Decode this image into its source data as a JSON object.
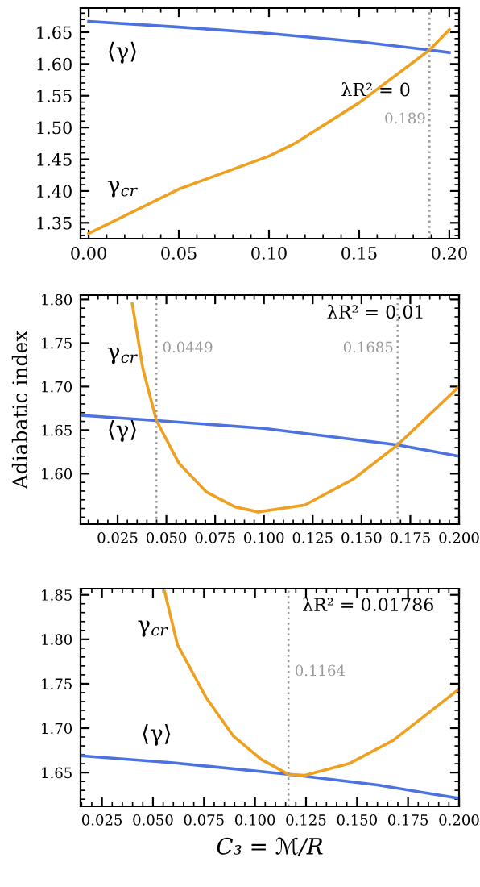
{
  "chart_data": [
    {
      "type": "line",
      "xlim": [
        -0.0045,
        0.2054
      ],
      "ylim": [
        1.325,
        1.688
      ],
      "xticks": [
        {
          "value": 0,
          "label": "0.00"
        },
        {
          "value": 0.05,
          "label": "0.05"
        },
        {
          "value": 0.1,
          "label": "0.10"
        },
        {
          "value": 0.15,
          "label": "0.15"
        },
        {
          "value": 0.2,
          "label": "0.20"
        }
      ],
      "yticks": [
        {
          "value": 1.35,
          "label": "1.35"
        },
        {
          "value": 1.4,
          "label": "1.40"
        },
        {
          "value": 1.45,
          "label": "1.45"
        },
        {
          "value": 1.5,
          "label": "1.50"
        },
        {
          "value": 1.55,
          "label": "1.55"
        },
        {
          "value": 1.6,
          "label": "1.60"
        },
        {
          "value": 1.65,
          "label": "1.65"
        }
      ],
      "series": [
        {
          "name": "⟨γ⟩",
          "color": "#4c72e0",
          "x": [
            0,
            0.05,
            0.1,
            0.15,
            0.189,
            0.2
          ],
          "values": [
            1.667,
            1.658,
            1.648,
            1.635,
            1.622,
            1.618
          ]
        },
        {
          "name": "γ$_{cr}$",
          "color": "#f0a020",
          "x": [
            0,
            0.05,
            0.1,
            0.115,
            0.15,
            0.189,
            0.2
          ],
          "values": [
            1.333,
            1.403,
            1.455,
            1.476,
            1.539,
            1.622,
            1.654
          ]
        }
      ],
      "ref_lines": [
        {
          "axis": "x",
          "value": 0.189,
          "label": "0.189",
          "color": "#999999",
          "line_style": "dotted"
        }
      ],
      "annotations": [
        "λR² = 0"
      ]
    },
    {
      "type": "line",
      "xlim": [
        0.006,
        0.2
      ],
      "ylim": [
        1.542,
        1.805
      ],
      "ylabel": "Adiabatic index",
      "xticks": [
        {
          "value": 0.025,
          "label": "0.025"
        },
        {
          "value": 0.05,
          "label": "0.050"
        },
        {
          "value": 0.075,
          "label": "0.075"
        },
        {
          "value": 0.1,
          "label": "0.100"
        },
        {
          "value": 0.125,
          "label": "0.125"
        },
        {
          "value": 0.15,
          "label": "0.150"
        },
        {
          "value": 0.175,
          "label": "0.175"
        },
        {
          "value": 0.2,
          "label": "0.200"
        }
      ],
      "yticks": [
        {
          "value": 1.6,
          "label": "1.60"
        },
        {
          "value": 1.65,
          "label": "1.65"
        },
        {
          "value": 1.7,
          "label": "1.70"
        },
        {
          "value": 1.75,
          "label": "1.75"
        },
        {
          "value": 1.8,
          "label": "1.80"
        }
      ],
      "series": [
        {
          "name": "⟨γ⟩",
          "color": "#4c72e0",
          "x": [
            0.006,
            0.0449,
            0.1,
            0.1685,
            0.2
          ],
          "values": [
            1.667,
            1.661,
            1.652,
            1.633,
            1.62
          ]
        },
        {
          "name": "γ$_{cr}$",
          "color": "#f0a020",
          "x": [
            0.0325,
            0.038,
            0.0449,
            0.0564,
            0.0705,
            0.085,
            0.097,
            0.121,
            0.146,
            0.1685,
            0.2
          ],
          "values": [
            1.795,
            1.72,
            1.661,
            1.612,
            1.579,
            1.562,
            1.556,
            1.564,
            1.594,
            1.633,
            1.7
          ]
        }
      ],
      "ref_lines": [
        {
          "axis": "x",
          "value": 0.0449,
          "label": "0.0449",
          "color": "#999999",
          "line_style": "dotted"
        },
        {
          "axis": "x",
          "value": 0.1685,
          "label": "0.1685",
          "color": "#999999",
          "line_style": "dotted"
        }
      ],
      "annotations": [
        "λR² = 0.01"
      ]
    },
    {
      "type": "line",
      "xlim": [
        0.0145,
        0.2
      ],
      "ylim": [
        1.612,
        1.857
      ],
      "xlabel": "C₃ = ℳ/R",
      "xticks": [
        {
          "value": 0.025,
          "label": "0.025"
        },
        {
          "value": 0.05,
          "label": "0.050"
        },
        {
          "value": 0.075,
          "label": "0.075"
        },
        {
          "value": 0.1,
          "label": "0.100"
        },
        {
          "value": 0.125,
          "label": "0.125"
        },
        {
          "value": 0.15,
          "label": "0.150"
        },
        {
          "value": 0.175,
          "label": "0.175"
        },
        {
          "value": 0.2,
          "label": "0.200"
        }
      ],
      "yticks": [
        {
          "value": 1.65,
          "label": "1.65"
        },
        {
          "value": 1.7,
          "label": "1.70"
        },
        {
          "value": 1.75,
          "label": "1.75"
        },
        {
          "value": 1.8,
          "label": "1.80"
        },
        {
          "value": 1.85,
          "label": "1.85"
        }
      ],
      "series": [
        {
          "name": "⟨γ⟩",
          "color": "#4c72e0",
          "x": [
            0.0145,
            0.06,
            0.1164,
            0.16,
            0.2
          ],
          "values": [
            1.669,
            1.661,
            1.648,
            1.636,
            1.621
          ]
        },
        {
          "name": "γ$_{cr}$",
          "color": "#f0a020",
          "x": [
            0.0557,
            0.062,
            0.0759,
            0.0894,
            0.103,
            0.1164,
            0.1245,
            0.146,
            0.1676,
            0.2
          ],
          "values": [
            1.854,
            1.794,
            1.735,
            1.691,
            1.665,
            1.648,
            1.647,
            1.66,
            1.686,
            1.744
          ]
        }
      ],
      "ref_lines": [
        {
          "axis": "x",
          "value": 0.1164,
          "label": "0.1164",
          "color": "#999999",
          "line_style": "dotted"
        }
      ],
      "annotations": [
        "λR² = 0.01786"
      ]
    }
  ]
}
